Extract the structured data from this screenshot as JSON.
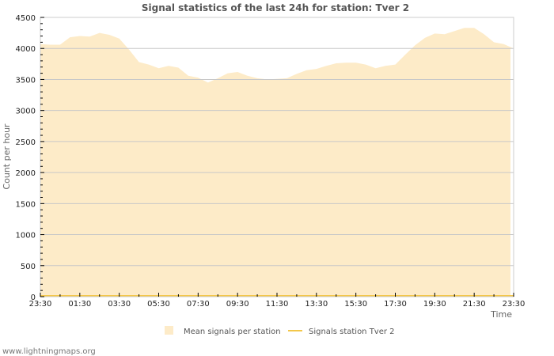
{
  "chart_data": {
    "type": "area",
    "title": "Signal statistics of the last 24h for station: Tver 2",
    "xlabel": "Time",
    "ylabel": "Count per hour",
    "ylim": [
      0,
      4500
    ],
    "yticks": [
      0,
      500,
      1000,
      1500,
      2000,
      2500,
      3000,
      3500,
      4000,
      4500
    ],
    "xtick_labels": [
      "23:30",
      "01:30",
      "03:30",
      "05:30",
      "07:30",
      "09:30",
      "11:30",
      "13:30",
      "15:30",
      "17:30",
      "19:30",
      "21:30",
      "23:30"
    ],
    "grid": true,
    "legend_position": "bottom",
    "x": [
      "23:30",
      "00:00",
      "00:30",
      "01:00",
      "01:30",
      "02:00",
      "02:30",
      "03:00",
      "03:30",
      "04:00",
      "04:30",
      "05:00",
      "05:30",
      "06:00",
      "06:30",
      "07:00",
      "07:30",
      "08:00",
      "08:30",
      "09:00",
      "09:30",
      "10:00",
      "10:30",
      "11:00",
      "11:30",
      "12:00",
      "12:30",
      "13:00",
      "13:30",
      "14:00",
      "14:30",
      "15:00",
      "15:30",
      "16:00",
      "16:30",
      "17:00",
      "17:30",
      "18:00",
      "18:30",
      "19:00",
      "19:30",
      "20:00",
      "20:30",
      "21:00",
      "21:30",
      "22:00",
      "22:30",
      "23:00",
      "23:30"
    ],
    "series": [
      {
        "name": "Mean signals per station",
        "style": "area",
        "color": "#fdebc8",
        "values": [
          4070,
          4060,
          4060,
          4180,
          4200,
          4190,
          4250,
          4220,
          4160,
          3980,
          3780,
          3740,
          3680,
          3720,
          3690,
          3560,
          3530,
          3450,
          3520,
          3600,
          3620,
          3560,
          3520,
          3500,
          3510,
          3520,
          3590,
          3650,
          3670,
          3720,
          3760,
          3770,
          3770,
          3740,
          3680,
          3720,
          3740,
          3900,
          4050,
          4170,
          4240,
          4230,
          4280,
          4330,
          4330,
          4230,
          4100,
          4070,
          4000
        ]
      },
      {
        "name": "Signals station Tver 2",
        "style": "line",
        "color": "#f3c74a",
        "values": [
          0,
          0,
          0,
          0,
          0,
          0,
          0,
          0,
          0,
          0,
          0,
          0,
          0,
          0,
          0,
          0,
          0,
          0,
          0,
          0,
          0,
          0,
          0,
          0,
          0,
          0,
          0,
          0,
          0,
          0,
          0,
          0,
          0,
          0,
          0,
          0,
          0,
          0,
          0,
          0,
          0,
          0,
          0,
          0,
          0,
          0,
          0,
          0,
          0
        ]
      }
    ]
  },
  "footer": {
    "text": "www.lightningmaps.org"
  },
  "colors": {
    "area": "#fdebc8",
    "line": "#f3c74a",
    "grid": "#c8c8c8",
    "axis": "#cccccc"
  }
}
